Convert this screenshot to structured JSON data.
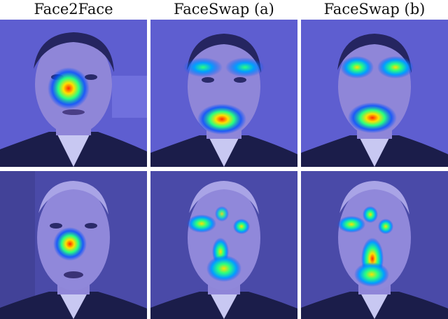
{
  "columns": [
    {
      "title": "Face2Face"
    },
    {
      "title": "FaceSwap (a)"
    },
    {
      "title": "FaceSwap (b)"
    }
  ],
  "panels": [
    {
      "row": 0,
      "col": 0,
      "heatmap": "nose"
    },
    {
      "row": 0,
      "col": 1,
      "heatmap": "eyes-mouth"
    },
    {
      "row": 0,
      "col": 2,
      "heatmap": "eyes-mouth"
    },
    {
      "row": 1,
      "col": 0,
      "heatmap": "nose"
    },
    {
      "row": 1,
      "col": 1,
      "heatmap": "eyes-nose-mouth"
    },
    {
      "row": 1,
      "col": 2,
      "heatmap": "eyes-nose-mouth"
    }
  ],
  "colors": {
    "tint_bg": "#6a6ad8",
    "skin": "#8f86d8",
    "suit": "#1b1d4a",
    "shirt": "#c8c8f2",
    "heat_hot": "#ff2a00",
    "heat_warm": "#ffe000",
    "heat_mid": "#2aff80",
    "heat_cool": "#0050ff"
  }
}
